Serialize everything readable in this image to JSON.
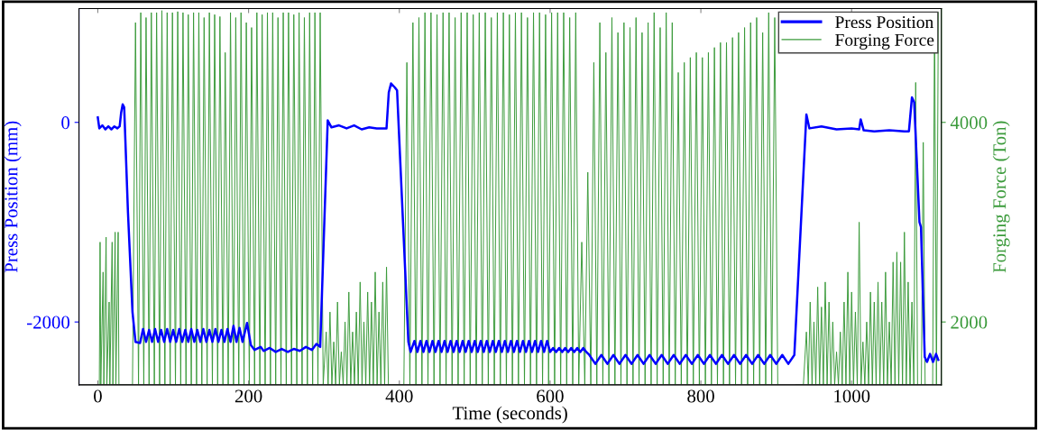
{
  "chart_data": {
    "type": "line",
    "xlabel": "Time (seconds)",
    "ylabel": "Press Position (mm)",
    "y2label": "Forging Force (Ton)",
    "xlim": [
      -25,
      1119
    ],
    "xticks": [
      0,
      200,
      400,
      600,
      800,
      1000
    ],
    "ylim": [
      -2630,
      1140
    ],
    "yticks": [
      -2000,
      0
    ],
    "y2lim": [
      1370,
      5140
    ],
    "y2ticks": [
      2000,
      4000
    ],
    "legend": "top right",
    "grid": false,
    "series": [
      {
        "name": "Press Position",
        "color": "#0000ff",
        "axis": "y",
        "x": [
          0,
          2,
          6,
          10,
          14,
          18,
          22,
          26,
          29,
          31,
          33,
          35,
          40,
          46,
          50,
          56,
          60,
          64,
          68,
          72,
          76,
          80,
          84,
          88,
          92,
          96,
          100,
          104,
          108,
          112,
          116,
          120,
          124,
          128,
          132,
          136,
          140,
          144,
          148,
          152,
          156,
          160,
          164,
          168,
          172,
          176,
          180,
          184,
          188,
          192,
          198,
          203,
          208,
          216,
          220,
          228,
          236,
          244,
          252,
          260,
          268,
          276,
          284,
          290,
          295,
          305,
          310,
          320,
          330,
          340,
          350,
          360,
          370,
          383,
          386,
          389,
          394,
          397,
          412,
          415,
          420,
          424,
          428,
          432,
          436,
          440,
          444,
          448,
          452,
          456,
          460,
          464,
          468,
          472,
          476,
          480,
          484,
          488,
          492,
          496,
          500,
          504,
          508,
          512,
          516,
          520,
          524,
          528,
          532,
          536,
          540,
          544,
          548,
          552,
          556,
          560,
          564,
          568,
          572,
          576,
          580,
          584,
          588,
          592,
          596,
          600,
          604,
          608,
          612,
          616,
          620,
          624,
          628,
          632,
          636,
          640,
          644,
          648,
          652,
          660,
          668,
          676,
          684,
          692,
          700,
          708,
          716,
          724,
          732,
          740,
          748,
          756,
          764,
          772,
          780,
          788,
          796,
          804,
          812,
          820,
          828,
          836,
          844,
          852,
          860,
          868,
          876,
          884,
          892,
          900,
          908,
          916,
          924,
          940,
          944,
          960,
          980,
          1000,
          1010,
          1012,
          1016,
          1030,
          1050,
          1070,
          1076,
          1080,
          1083,
          1090,
          1092,
          1097,
          1100,
          1104,
          1108,
          1112,
          1115
        ],
        "values": [
          50,
          -60,
          -30,
          -70,
          -40,
          -70,
          -40,
          -60,
          -40,
          100,
          180,
          150,
          -900,
          -1900,
          -2200,
          -2210,
          -2070,
          -2200,
          -2080,
          -2200,
          -2070,
          -2200,
          -2080,
          -2200,
          -2070,
          -2200,
          -2080,
          -2200,
          -2070,
          -2200,
          -2080,
          -2200,
          -2070,
          -2200,
          -2080,
          -2200,
          -2070,
          -2200,
          -2080,
          -2200,
          -2070,
          -2200,
          -2080,
          -2200,
          -2070,
          -2200,
          -2040,
          -2200,
          -2060,
          -2200,
          -2010,
          -2230,
          -2280,
          -2250,
          -2290,
          -2260,
          -2300,
          -2270,
          -2300,
          -2270,
          -2290,
          -2250,
          -2280,
          -2220,
          -2250,
          20,
          -50,
          -30,
          -60,
          -30,
          -70,
          -50,
          -60,
          -60,
          300,
          390,
          350,
          320,
          -2200,
          -2300,
          -2190,
          -2300,
          -2190,
          -2300,
          -2190,
          -2300,
          -2190,
          -2300,
          -2190,
          -2300,
          -2190,
          -2300,
          -2190,
          -2300,
          -2190,
          -2300,
          -2190,
          -2300,
          -2190,
          -2300,
          -2190,
          -2300,
          -2190,
          -2300,
          -2190,
          -2300,
          -2190,
          -2300,
          -2190,
          -2300,
          -2190,
          -2300,
          -2190,
          -2300,
          -2190,
          -2300,
          -2190,
          -2300,
          -2190,
          -2300,
          -2190,
          -2300,
          -2190,
          -2300,
          -2190,
          -2300,
          -2260,
          -2300,
          -2260,
          -2300,
          -2260,
          -2300,
          -2260,
          -2300,
          -2260,
          -2300,
          -2260,
          -2300,
          -2330,
          -2420,
          -2330,
          -2420,
          -2330,
          -2420,
          -2330,
          -2420,
          -2330,
          -2420,
          -2330,
          -2420,
          -2330,
          -2420,
          -2330,
          -2420,
          -2330,
          -2420,
          -2330,
          -2420,
          -2330,
          -2420,
          -2330,
          -2420,
          -2330,
          -2420,
          -2330,
          -2420,
          -2330,
          -2420,
          -2330,
          -2420,
          -2330,
          -2420,
          -2330,
          80,
          -60,
          -40,
          -70,
          -60,
          -70,
          30,
          -80,
          -90,
          -80,
          -90,
          -90,
          250,
          200,
          -1000,
          -1050,
          -2350,
          -2400,
          -2320,
          -2400,
          -2320,
          -2380
        ]
      },
      {
        "name": "Forging Force",
        "color": "#3a9a3a",
        "axis": "y2",
        "x": [
          2,
          3,
          4,
          7,
          8,
          11,
          12,
          15,
          16,
          19,
          20,
          23,
          24,
          27,
          28,
          46,
          50,
          54,
          57,
          61,
          64,
          68,
          71,
          75,
          78,
          82,
          85,
          89,
          92,
          96,
          99,
          103,
          106,
          110,
          113,
          117,
          120,
          124,
          127,
          131,
          134,
          138,
          141,
          145,
          148,
          152,
          155,
          159,
          162,
          166,
          169,
          173,
          176,
          180,
          183,
          187,
          190,
          194,
          197,
          201,
          204,
          208,
          211,
          215,
          218,
          222,
          225,
          229,
          232,
          236,
          239,
          243,
          246,
          250,
          253,
          257,
          260,
          264,
          267,
          271,
          274,
          278,
          281,
          285,
          288,
          292,
          295,
          299,
          303,
          305.5,
          308,
          310.5,
          313,
          315.5,
          318,
          320.5,
          323,
          325.5,
          328,
          330.5,
          333,
          335.5,
          338,
          340.5,
          343,
          345.5,
          348,
          350.5,
          353,
          355.5,
          358,
          360.5,
          363,
          365.5,
          368,
          370.5,
          373,
          375.5,
          378,
          380.5,
          383,
          385.5,
          406,
          410,
          414,
          418,
          422,
          426,
          430,
          434,
          438,
          442,
          446,
          450,
          454,
          458,
          462,
          466,
          470,
          474,
          478,
          482,
          486,
          490,
          494,
          498,
          502,
          506,
          510,
          514,
          518,
          522,
          526,
          530,
          534,
          538,
          542,
          546,
          550,
          554,
          558,
          562,
          566,
          570,
          574,
          578,
          582,
          586,
          590,
          594,
          598,
          602,
          606,
          610,
          614,
          618,
          622,
          626,
          630,
          634,
          638,
          642,
          646,
          650,
          654,
          658,
          662,
          666,
          670,
          674,
          678,
          682,
          686,
          690,
          694,
          698,
          702,
          706,
          710,
          714,
          718,
          722,
          726,
          730,
          734,
          738,
          742,
          746,
          750,
          754,
          758,
          762,
          766,
          770,
          774,
          778,
          782,
          786,
          790,
          794,
          798,
          802,
          806,
          810,
          814,
          818,
          822,
          826,
          830,
          834,
          838,
          842,
          846,
          850,
          854,
          858,
          862,
          866,
          870,
          874,
          878,
          882,
          886,
          890,
          894,
          898,
          902,
          906,
          910,
          914,
          918,
          922,
          926,
          936,
          940,
          942.5,
          945,
          947.5,
          950,
          952.5,
          955,
          957.5,
          960,
          962.5,
          965,
          967.5,
          970,
          972.5,
          975,
          977.5,
          980,
          982.5,
          985,
          987.5,
          990,
          992.5,
          995,
          997.5,
          1000,
          1002.5,
          1005,
          1007.5,
          1010,
          1012.5,
          1015,
          1017.5,
          1020,
          1022.5,
          1025,
          1027.5,
          1030,
          1032.5,
          1035,
          1037.5,
          1040,
          1042.5,
          1045,
          1047.5,
          1050,
          1052.5,
          1055,
          1057.5,
          1060,
          1062.5,
          1065,
          1067.5,
          1070,
          1072.5,
          1075,
          1077.5,
          1080,
          1082.5,
          1085,
          1087.5,
          1090,
          1092.5,
          1095,
          1097.5,
          1100,
          1102.5,
          1105,
          1107.5,
          1110,
          1112.5,
          1115
        ],
        "values": [
          1370,
          2800,
          1370,
          2500,
          1370,
          2850,
          1370,
          2200,
          1370,
          2800,
          1370,
          2900,
          1370,
          2900,
          1370,
          1370,
          5000,
          1370,
          5100,
          1370,
          5050,
          1370,
          5100,
          1370,
          5100,
          1370,
          5120,
          1370,
          5100,
          1370,
          5100,
          1370,
          5110,
          1370,
          5100,
          1370,
          5080,
          1370,
          5100,
          1370,
          5100,
          1370,
          5050,
          1370,
          5100,
          1370,
          5080,
          1370,
          5060,
          1370,
          4700,
          1370,
          5100,
          1370,
          5050,
          1370,
          5100,
          1370,
          5000,
          1370,
          4950,
          1370,
          5100,
          1370,
          5080,
          1370,
          5100,
          1370,
          5100,
          1370,
          5050,
          1370,
          5100,
          1370,
          5100,
          1370,
          5080,
          1370,
          5100,
          1370,
          5050,
          1370,
          5100,
          1370,
          5100,
          1370,
          5100,
          1370,
          1900,
          1370,
          2100,
          1370,
          1800,
          1370,
          2200,
          1370,
          1700,
          1370,
          2000,
          1370,
          2300,
          1370,
          1900,
          1370,
          2100,
          1370,
          2400,
          1370,
          2000,
          1370,
          2300,
          1370,
          2200,
          1370,
          2500,
          1370,
          2100,
          1370,
          2400,
          1370,
          2550,
          1370,
          1370,
          4600,
          1370,
          5000,
          1370,
          5050,
          1370,
          5100,
          1370,
          5100,
          1370,
          5080,
          1370,
          5100,
          1370,
          5100,
          1370,
          5050,
          1370,
          5100,
          1370,
          5100,
          1370,
          5080,
          1370,
          5100,
          1370,
          5100,
          1370,
          5050,
          1370,
          5100,
          1370,
          5100,
          1370,
          5080,
          1370,
          5100,
          1370,
          5100,
          1370,
          5050,
          1370,
          5100,
          1370,
          5100,
          1370,
          5080,
          1370,
          5100,
          1370,
          5100,
          1370,
          5100,
          1370,
          5050,
          1370,
          5100,
          1370,
          2800,
          1370,
          3500,
          1370,
          4600,
          1370,
          5000,
          1370,
          4700,
          1370,
          5050,
          1370,
          4900,
          1370,
          5000,
          1370,
          4950,
          1370,
          5050,
          1370,
          4900,
          1370,
          5000,
          1370,
          5100,
          1370,
          4950,
          1370,
          5100,
          1370,
          5000,
          1370,
          4500,
          1370,
          4600,
          1370,
          4650,
          1370,
          4700,
          1370,
          4650,
          1370,
          4700,
          1370,
          4750,
          1370,
          4800,
          1370,
          4800,
          1370,
          4850,
          1370,
          4900,
          1370,
          4950,
          1370,
          5000,
          1370,
          5050,
          1370,
          4900,
          1370,
          5100,
          1370,
          5050,
          1370,
          null,
          null,
          null,
          null,
          null,
          1370,
          1370,
          1900,
          1370,
          2200,
          1370,
          2000,
          1370,
          2350,
          1370,
          2150,
          1370,
          2400,
          1370,
          2200,
          1370,
          2000,
          1370,
          1700,
          1370,
          1900,
          1370,
          2200,
          1370,
          2500,
          1370,
          2300,
          1370,
          2100,
          1370,
          3000,
          1370,
          1800,
          1370,
          2000,
          1370,
          2300,
          1370,
          2200,
          1370,
          2400,
          1370,
          2200,
          1370,
          2500,
          1370,
          2000,
          1370,
          2600,
          1370,
          2700,
          1370,
          2600,
          1370,
          2900,
          1370,
          2400,
          1370,
          2200,
          1370,
          4400,
          1370,
          null,
          1370,
          3800,
          1370,
          null,
          null,
          null,
          1370,
          5100,
          1370,
          5100
        ]
      }
    ]
  }
}
